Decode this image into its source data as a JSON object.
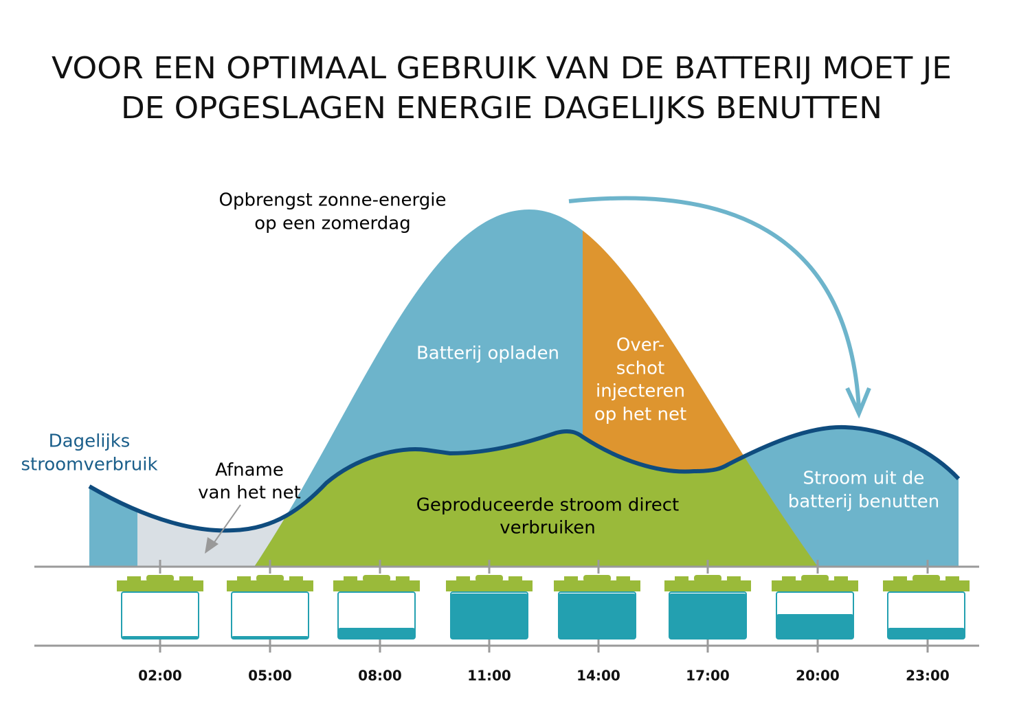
{
  "title": {
    "lines": [
      "VOOR EEN OPTIMAAL GEBRUIK VAN DE BATTERIJ MOET JE",
      "DE OPGESLAGEN ENERGIE DAGELIJKS BENUTTEN"
    ]
  },
  "labels": {
    "solar": [
      "Opbrengst zonne-energie",
      "op een zomerdag"
    ],
    "consumption": [
      "Dagelijks",
      "stroomverbruik"
    ],
    "grid_draw": [
      "Afname",
      "van het net"
    ],
    "charge": "Batterij opladen",
    "surplus": [
      "Over-",
      "schot",
      "injecteren",
      "op het net"
    ],
    "direct": [
      "Geproduceerde stroom direct",
      "verbruiken"
    ],
    "discharge": [
      "Stroom uit de",
      "batterij benutten"
    ]
  },
  "times": [
    "02:00",
    "05:00",
    "08:00",
    "11:00",
    "14:00",
    "17:00",
    "20:00",
    "23:00"
  ]
}
